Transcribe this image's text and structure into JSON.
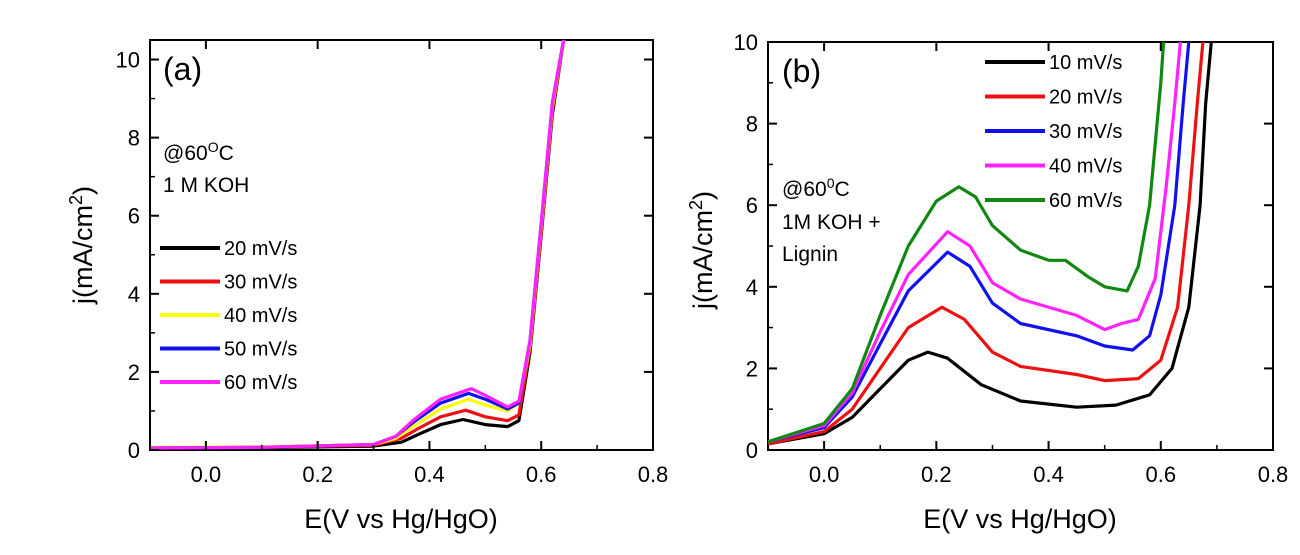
{
  "colors": {
    "black": "#000000",
    "red": "#ee1111",
    "yellow": "#ffff00",
    "blue": "#1111ee",
    "magenta": "#ff22ff",
    "green": "#118811"
  },
  "chart_data": [
    {
      "type": "line",
      "panel_label": "(a)",
      "notes": [
        "@60",
        "O",
        "C",
        "1 M KOH"
      ],
      "xlabel": "E(V vs Hg/HgO)",
      "ylabel": "j(mA/cm",
      "ylabel_sup": "2",
      "ylabel_tail": ")",
      "xlim": [
        -0.1,
        0.8
      ],
      "ylim": [
        0,
        10.5
      ],
      "xticks": [
        0.0,
        0.2,
        0.4,
        0.6,
        0.8
      ],
      "xtick_labels": [
        "0.0",
        "0.2",
        "0.4",
        "0.6",
        "0.8"
      ],
      "yticks": [
        0,
        2,
        4,
        6,
        8,
        10
      ],
      "ytick_labels": [
        "0",
        "2",
        "4",
        "6",
        "8",
        "10"
      ],
      "legend_position": "middle-left",
      "series": [
        {
          "name": "20 mV/s",
          "color": "#000000",
          "points": [
            [
              -0.1,
              0.04
            ],
            [
              0.1,
              0.06
            ],
            [
              0.3,
              0.1
            ],
            [
              0.35,
              0.2
            ],
            [
              0.38,
              0.4
            ],
            [
              0.42,
              0.65
            ],
            [
              0.46,
              0.78
            ],
            [
              0.5,
              0.65
            ],
            [
              0.54,
              0.6
            ],
            [
              0.56,
              0.75
            ],
            [
              0.58,
              2.5
            ],
            [
              0.6,
              5.5
            ],
            [
              0.62,
              8.6
            ],
            [
              0.64,
              10.5
            ]
          ]
        },
        {
          "name": "30 mV/s",
          "color": "#ee1111",
          "points": [
            [
              -0.1,
              0.05
            ],
            [
              0.1,
              0.07
            ],
            [
              0.3,
              0.12
            ],
            [
              0.35,
              0.3
            ],
            [
              0.38,
              0.55
            ],
            [
              0.42,
              0.85
            ],
            [
              0.465,
              1.02
            ],
            [
              0.5,
              0.85
            ],
            [
              0.54,
              0.75
            ],
            [
              0.56,
              0.9
            ],
            [
              0.58,
              2.6
            ],
            [
              0.6,
              5.6
            ],
            [
              0.62,
              8.7
            ],
            [
              0.64,
              10.5
            ]
          ]
        },
        {
          "name": "40 mV/s",
          "color": "#ffff00",
          "points": [
            [
              -0.1,
              0.07
            ],
            [
              0.1,
              0.08
            ],
            [
              0.3,
              0.14
            ],
            [
              0.34,
              0.3
            ],
            [
              0.37,
              0.6
            ],
            [
              0.42,
              1.05
            ],
            [
              0.47,
              1.3
            ],
            [
              0.5,
              1.15
            ],
            [
              0.54,
              1.0
            ],
            [
              0.56,
              1.2
            ],
            [
              0.58,
              2.7
            ],
            [
              0.6,
              5.7
            ],
            [
              0.62,
              8.8
            ],
            [
              0.64,
              10.5
            ]
          ]
        },
        {
          "name": "50 mV/s",
          "color": "#1111ee",
          "points": [
            [
              -0.1,
              0.05
            ],
            [
              0.1,
              0.07
            ],
            [
              0.3,
              0.14
            ],
            [
              0.34,
              0.35
            ],
            [
              0.37,
              0.7
            ],
            [
              0.42,
              1.2
            ],
            [
              0.47,
              1.45
            ],
            [
              0.5,
              1.3
            ],
            [
              0.54,
              1.05
            ],
            [
              0.56,
              1.2
            ],
            [
              0.58,
              2.8
            ],
            [
              0.6,
              5.8
            ],
            [
              0.62,
              8.9
            ],
            [
              0.64,
              10.5
            ]
          ]
        },
        {
          "name": "60 mV/s",
          "color": "#ff22ff",
          "points": [
            [
              -0.1,
              0.05
            ],
            [
              0.1,
              0.07
            ],
            [
              0.3,
              0.14
            ],
            [
              0.34,
              0.35
            ],
            [
              0.37,
              0.75
            ],
            [
              0.42,
              1.3
            ],
            [
              0.475,
              1.57
            ],
            [
              0.5,
              1.4
            ],
            [
              0.54,
              1.1
            ],
            [
              0.56,
              1.25
            ],
            [
              0.58,
              2.8
            ],
            [
              0.6,
              5.8
            ],
            [
              0.62,
              8.9
            ],
            [
              0.64,
              10.5
            ]
          ]
        }
      ]
    },
    {
      "type": "line",
      "panel_label": "(b)",
      "notes": [
        "@60",
        "0",
        "C",
        "1M KOH +",
        "Lignin"
      ],
      "xlabel": "E(V vs Hg/HgO)",
      "ylabel": "j(mA/cm",
      "ylabel_sup": "2",
      "ylabel_tail": ")",
      "xlim": [
        -0.1,
        0.8
      ],
      "ylim": [
        0,
        10
      ],
      "xticks": [
        0.0,
        0.2,
        0.4,
        0.6,
        0.8
      ],
      "xtick_labels": [
        "0.0",
        "0.2",
        "0.4",
        "0.6",
        "0.8"
      ],
      "yticks": [
        0,
        2,
        4,
        6,
        8,
        10
      ],
      "ytick_labels": [
        "0",
        "2",
        "4",
        "6",
        "8",
        "10"
      ],
      "legend_position": "top-right",
      "series": [
        {
          "name": "10 mV/s",
          "color": "#000000",
          "points": [
            [
              -0.1,
              0.15
            ],
            [
              0.0,
              0.4
            ],
            [
              0.05,
              0.8
            ],
            [
              0.1,
              1.5
            ],
            [
              0.15,
              2.2
            ],
            [
              0.185,
              2.4
            ],
            [
              0.22,
              2.25
            ],
            [
              0.28,
              1.6
            ],
            [
              0.35,
              1.2
            ],
            [
              0.45,
              1.05
            ],
            [
              0.52,
              1.1
            ],
            [
              0.58,
              1.35
            ],
            [
              0.62,
              2.0
            ],
            [
              0.65,
              3.5
            ],
            [
              0.67,
              6.0
            ],
            [
              0.68,
              8.5
            ],
            [
              0.69,
              10
            ]
          ]
        },
        {
          "name": "20 mV/s",
          "color": "#ee1111",
          "points": [
            [
              -0.1,
              0.15
            ],
            [
              0.0,
              0.45
            ],
            [
              0.05,
              1.0
            ],
            [
              0.1,
              2.0
            ],
            [
              0.15,
              3.0
            ],
            [
              0.21,
              3.5
            ],
            [
              0.25,
              3.2
            ],
            [
              0.3,
              2.4
            ],
            [
              0.35,
              2.05
            ],
            [
              0.45,
              1.85
            ],
            [
              0.5,
              1.7
            ],
            [
              0.56,
              1.75
            ],
            [
              0.6,
              2.2
            ],
            [
              0.63,
              3.5
            ],
            [
              0.65,
              6.0
            ],
            [
              0.665,
              8.5
            ],
            [
              0.675,
              10
            ]
          ]
        },
        {
          "name": "30 mV/s",
          "color": "#1111ee",
          "points": [
            [
              -0.1,
              0.2
            ],
            [
              0.0,
              0.55
            ],
            [
              0.05,
              1.3
            ],
            [
              0.1,
              2.6
            ],
            [
              0.15,
              3.9
            ],
            [
              0.22,
              4.85
            ],
            [
              0.26,
              4.5
            ],
            [
              0.3,
              3.6
            ],
            [
              0.35,
              3.1
            ],
            [
              0.45,
              2.8
            ],
            [
              0.5,
              2.55
            ],
            [
              0.55,
              2.45
            ],
            [
              0.58,
              2.8
            ],
            [
              0.6,
              3.8
            ],
            [
              0.625,
              6.0
            ],
            [
              0.64,
              8.5
            ],
            [
              0.65,
              10
            ]
          ]
        },
        {
          "name": "40 mV/s",
          "color": "#ff22ff",
          "points": [
            [
              -0.1,
              0.2
            ],
            [
              0.0,
              0.6
            ],
            [
              0.05,
              1.4
            ],
            [
              0.1,
              2.9
            ],
            [
              0.15,
              4.3
            ],
            [
              0.22,
              5.35
            ],
            [
              0.26,
              5.0
            ],
            [
              0.3,
              4.1
            ],
            [
              0.35,
              3.7
            ],
            [
              0.45,
              3.3
            ],
            [
              0.5,
              2.95
            ],
            [
              0.53,
              3.1
            ],
            [
              0.56,
              3.2
            ],
            [
              0.59,
              4.2
            ],
            [
              0.61,
              6.5
            ],
            [
              0.625,
              8.5
            ],
            [
              0.635,
              10
            ]
          ]
        },
        {
          "name": "60 mV/s",
          "color": "#118811",
          "points": [
            [
              -0.1,
              0.2
            ],
            [
              0.0,
              0.65
            ],
            [
              0.05,
              1.5
            ],
            [
              0.1,
              3.3
            ],
            [
              0.15,
              5.0
            ],
            [
              0.2,
              6.1
            ],
            [
              0.24,
              6.45
            ],
            [
              0.27,
              6.2
            ],
            [
              0.3,
              5.5
            ],
            [
              0.35,
              4.9
            ],
            [
              0.4,
              4.65
            ],
            [
              0.43,
              4.65
            ],
            [
              0.47,
              4.25
            ],
            [
              0.5,
              4.0
            ],
            [
              0.54,
              3.9
            ],
            [
              0.56,
              4.5
            ],
            [
              0.58,
              6.0
            ],
            [
              0.59,
              7.5
            ],
            [
              0.6,
              9.0
            ],
            [
              0.605,
              10
            ]
          ]
        }
      ]
    }
  ]
}
